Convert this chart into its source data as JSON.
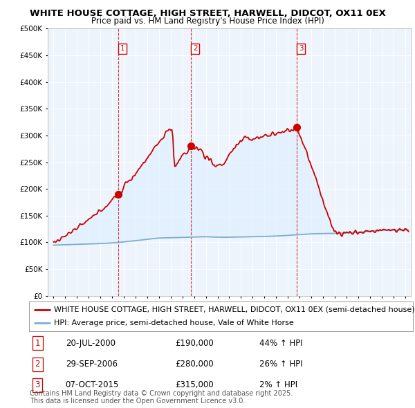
{
  "title": "WHITE HOUSE COTTAGE, HIGH STREET, HARWELL, DIDCOT, OX11 0EX",
  "subtitle": "Price paid vs. HM Land Registry's House Price Index (HPI)",
  "property_label": "WHITE HOUSE COTTAGE, HIGH STREET, HARWELL, DIDCOT, OX11 0EX (semi-detached house)",
  "hpi_label": "HPI: Average price, semi-detached house, Vale of White Horse",
  "property_color": "#cc0000",
  "hpi_color": "#7aadd4",
  "fill_color": "#ddeeff",
  "sale_color": "#cc0000",
  "sale_vline_color": "#cc0000",
  "background_color": "#ffffff",
  "chart_bg_color": "#eef4fb",
  "grid_color": "#ffffff",
  "sales": [
    {
      "label": "1",
      "date_x": 2000.55,
      "price": 190000,
      "pct": "44%",
      "direction": "↑",
      "date_str": "20-JUL-2000"
    },
    {
      "label": "2",
      "date_x": 2006.75,
      "price": 280000,
      "pct": "26%",
      "direction": "↑",
      "date_str": "29-SEP-2006"
    },
    {
      "label": "3",
      "date_x": 2015.77,
      "price": 315000,
      "pct": "2%",
      "direction": "↑",
      "date_str": "07-OCT-2015"
    }
  ],
  "ylim": [
    0,
    500000
  ],
  "xlim": [
    1994.5,
    2025.5
  ],
  "yticks": [
    0,
    50000,
    100000,
    150000,
    200000,
    250000,
    300000,
    350000,
    400000,
    450000,
    500000
  ],
  "footer": "Contains HM Land Registry data © Crown copyright and database right 2025.\nThis data is licensed under the Open Government Licence v3.0.",
  "title_fontsize": 9.5,
  "subtitle_fontsize": 8.5,
  "tick_fontsize": 7.5,
  "legend_fontsize": 8.0,
  "table_fontsize": 8.5,
  "footer_fontsize": 7.0
}
